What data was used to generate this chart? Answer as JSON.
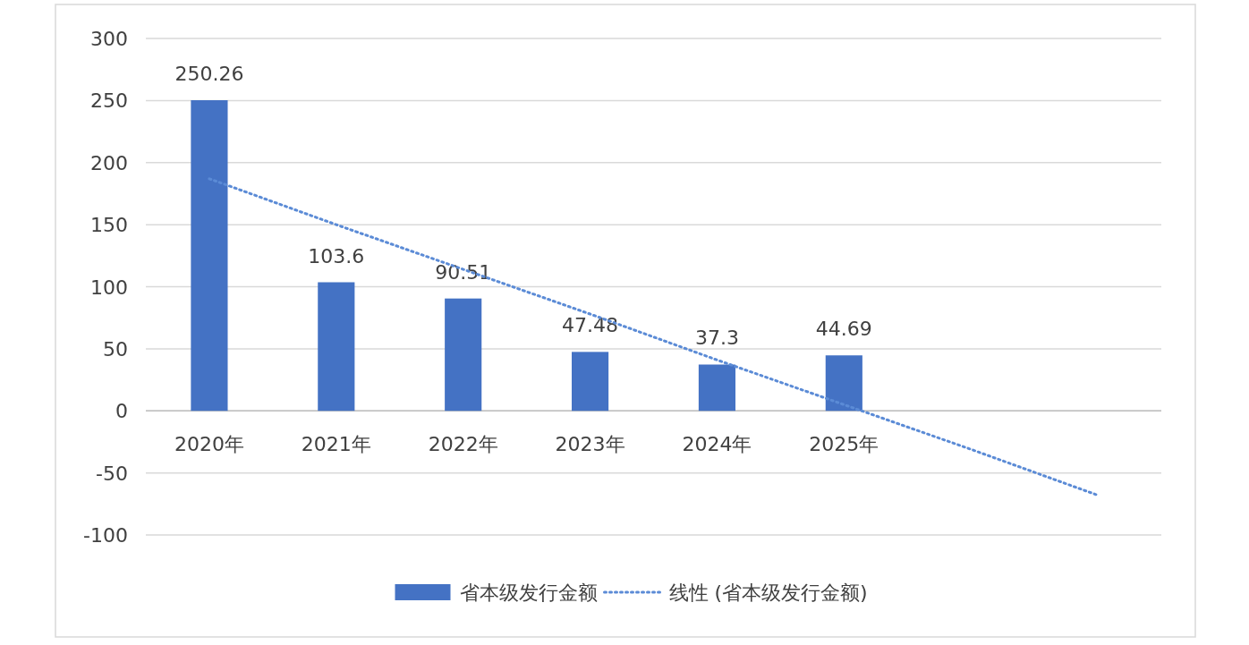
{
  "chart_data": {
    "type": "bar",
    "categories": [
      "2020年",
      "2021年",
      "2022年",
      "2023年",
      "2024年",
      "2025年",
      null,
      null
    ],
    "series": [
      {
        "name": "省本级发行金额",
        "color": "#4472c4",
        "values": [
          250.26,
          103.6,
          90.51,
          47.48,
          37.3,
          44.69,
          null,
          null
        ],
        "value_labels": [
          "250.26",
          "103.6",
          "90.51",
          "47.48",
          "37.3",
          "44.69",
          null,
          null
        ]
      },
      {
        "name": "线性 (省本级发行金额)",
        "type": "line",
        "color": "#5b8bd6",
        "line_style": "dotted",
        "marker": "none",
        "values": [
          187,
          150,
          114,
          78,
          41,
          5,
          -31,
          -68
        ]
      }
    ],
    "ylim": [
      -100,
      300
    ],
    "yticks": [
      -100,
      -50,
      0,
      50,
      100,
      150,
      200,
      250,
      300
    ],
    "grid": "y",
    "legend": "bottom"
  }
}
